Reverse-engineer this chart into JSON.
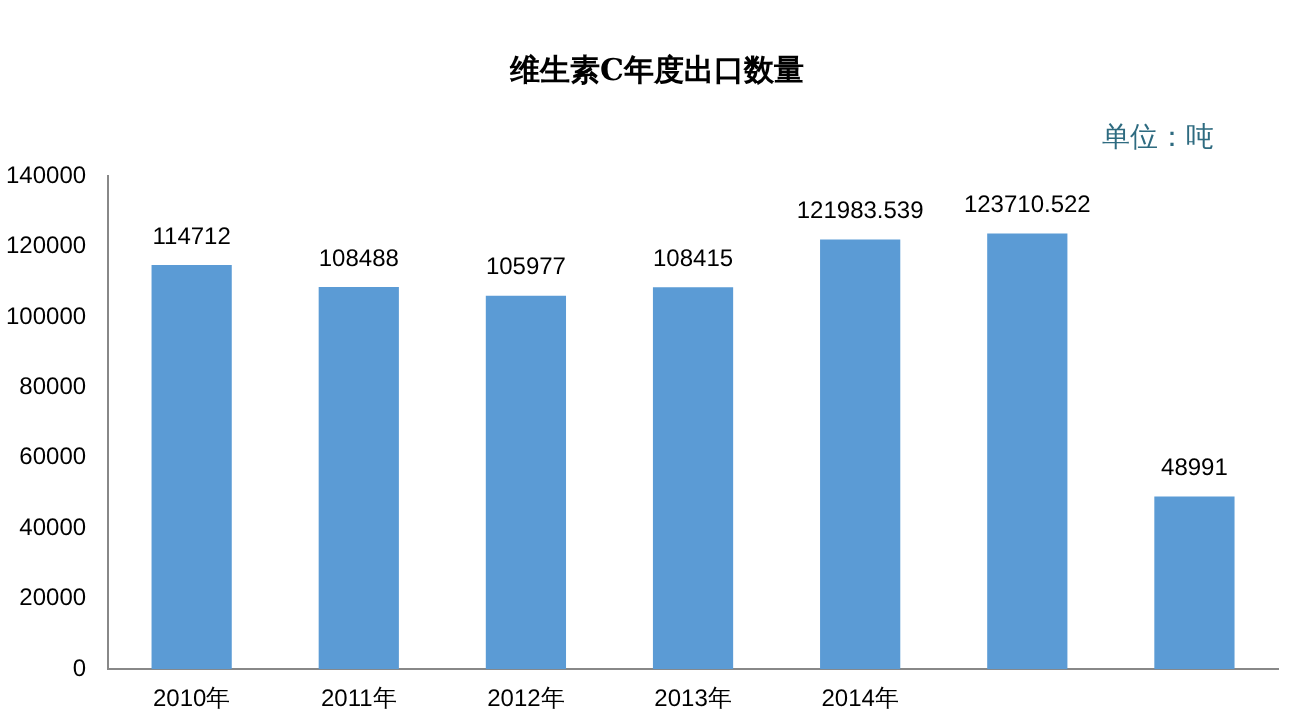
{
  "chart_data": {
    "type": "bar",
    "title": "维生素C年度出口数量",
    "annotations": [
      "单位：吨"
    ],
    "categories": [
      "2010年",
      "2011年",
      "2012年",
      "2013年",
      "2014年",
      null,
      null
    ],
    "values": [
      114712,
      108488,
      105977,
      108415,
      121983.539,
      123710.522,
      48991
    ],
    "color": "#5b9bd5",
    "data_labels": true,
    "grid": false,
    "legend": false,
    "ylim": [
      0,
      140000
    ],
    "yticks": [
      0,
      20000,
      40000,
      60000,
      80000,
      100000,
      120000,
      140000
    ]
  }
}
